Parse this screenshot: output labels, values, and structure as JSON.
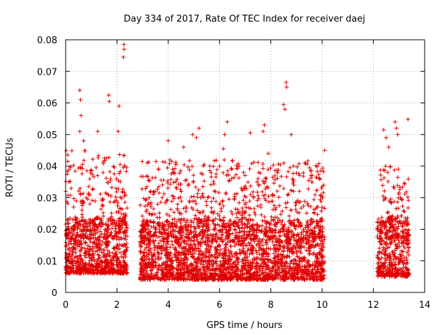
{
  "chart_data": {
    "type": "scatter",
    "title": "Day 334 of 2017, Rate Of TEC Index for receiver daej",
    "xlabel": "GPS time / hours",
    "ylabel": "ROTI / TECUs",
    "xlim": [
      0,
      14
    ],
    "ylim": [
      0,
      0.08
    ],
    "x_ticks": [
      0,
      2,
      4,
      6,
      8,
      10,
      12,
      14
    ],
    "y_ticks": [
      0,
      0.01,
      0.02,
      0.03,
      0.04,
      0.05,
      0.06,
      0.07,
      0.08
    ],
    "x_tick_labels": [
      "0",
      "2",
      "4",
      "6",
      "8",
      "10",
      "12",
      "14"
    ],
    "y_tick_labels": [
      "0",
      "0.01",
      "0.02",
      "0.03",
      "0.04",
      "0.05",
      "0.06",
      "0.07",
      "0.08"
    ],
    "grid": true,
    "marker": "plus",
    "color": "#e00000",
    "segments": [
      {
        "x_start": 0.0,
        "x_end": 2.4,
        "y_low": 0.006,
        "y_high": 0.045,
        "y_mid": 0.017
      },
      {
        "x_start": 2.9,
        "x_end": 10.1,
        "y_low": 0.004,
        "y_high": 0.042,
        "y_mid": 0.016
      },
      {
        "x_start": 12.15,
        "x_end": 13.4,
        "y_low": 0.005,
        "y_high": 0.04,
        "y_mid": 0.017
      }
    ],
    "peaks": [
      {
        "x": 0.0,
        "y": 0.032
      },
      {
        "x": 0.55,
        "y": 0.064
      },
      {
        "x": 0.58,
        "y": 0.061
      },
      {
        "x": 0.6,
        "y": 0.056
      },
      {
        "x": 0.55,
        "y": 0.051
      },
      {
        "x": 0.7,
        "y": 0.048
      },
      {
        "x": 1.25,
        "y": 0.051
      },
      {
        "x": 1.68,
        "y": 0.0625
      },
      {
        "x": 1.7,
        "y": 0.0605
      },
      {
        "x": 2.08,
        "y": 0.059
      },
      {
        "x": 2.05,
        "y": 0.051
      },
      {
        "x": 2.27,
        "y": 0.0785
      },
      {
        "x": 2.28,
        "y": 0.077
      },
      {
        "x": 2.25,
        "y": 0.0745
      },
      {
        "x": 4.0,
        "y": 0.048
      },
      {
        "x": 4.6,
        "y": 0.046
      },
      {
        "x": 4.95,
        "y": 0.05
      },
      {
        "x": 5.2,
        "y": 0.052
      },
      {
        "x": 5.1,
        "y": 0.049
      },
      {
        "x": 6.2,
        "y": 0.05
      },
      {
        "x": 6.15,
        "y": 0.0455
      },
      {
        "x": 6.3,
        "y": 0.054
      },
      {
        "x": 7.2,
        "y": 0.0505
      },
      {
        "x": 7.7,
        "y": 0.051
      },
      {
        "x": 7.75,
        "y": 0.053
      },
      {
        "x": 7.9,
        "y": 0.044
      },
      {
        "x": 8.5,
        "y": 0.0595
      },
      {
        "x": 8.55,
        "y": 0.058
      },
      {
        "x": 8.6,
        "y": 0.0665
      },
      {
        "x": 8.62,
        "y": 0.065
      },
      {
        "x": 8.8,
        "y": 0.05
      },
      {
        "x": 9.9,
        "y": 0.036
      },
      {
        "x": 10.1,
        "y": 0.045
      },
      {
        "x": 12.4,
        "y": 0.0515
      },
      {
        "x": 12.5,
        "y": 0.049
      },
      {
        "x": 12.6,
        "y": 0.046
      },
      {
        "x": 12.85,
        "y": 0.054
      },
      {
        "x": 12.9,
        "y": 0.052
      },
      {
        "x": 12.95,
        "y": 0.05
      },
      {
        "x": 13.35,
        "y": 0.0548
      }
    ]
  }
}
